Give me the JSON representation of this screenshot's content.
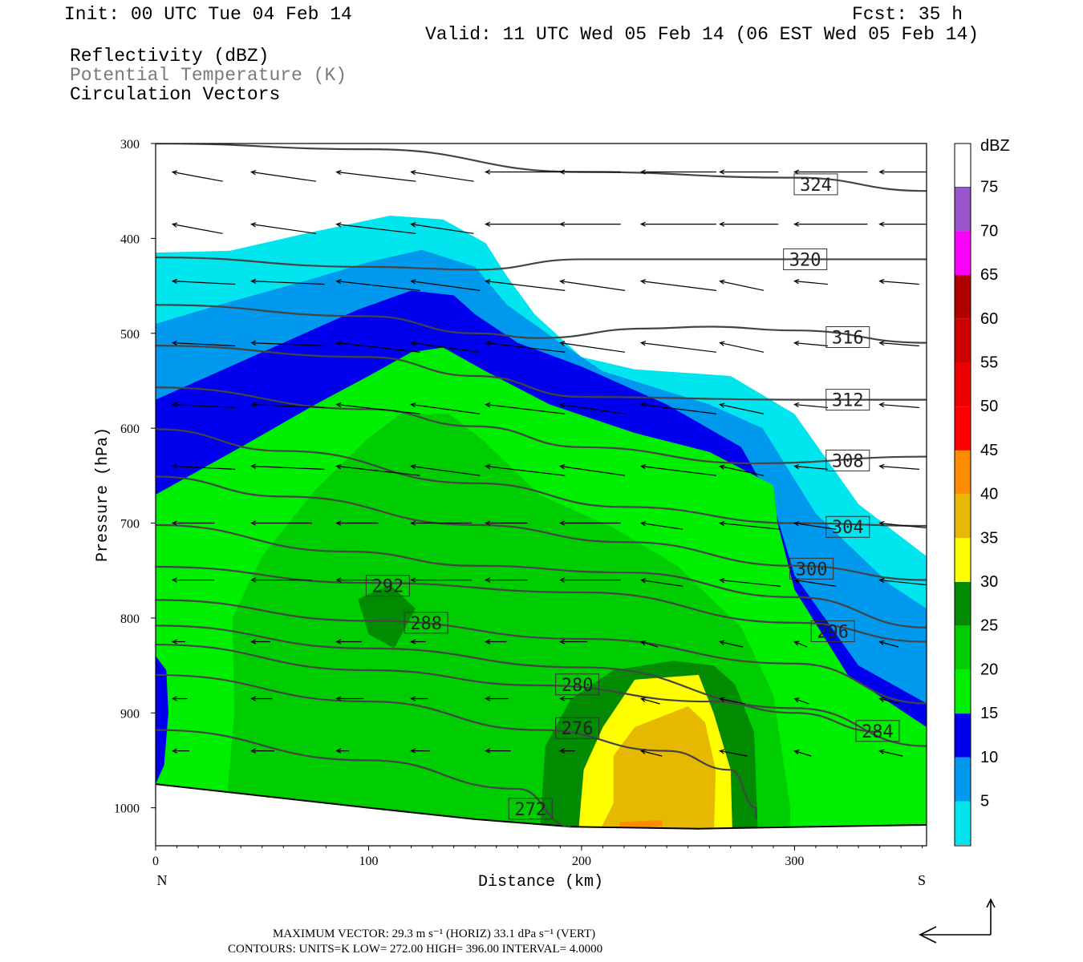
{
  "header": {
    "init": "Init: 00 UTC Tue 04 Feb 14",
    "fcst": "Fcst:   35 h",
    "valid": "Valid: 11 UTC Wed 05 Feb 14 (06 EST Wed 05 Feb 14)",
    "legend1": "Reflectivity (dBZ)",
    "legend2": "Potential Temperature (K)",
    "legend3": "Circulation Vectors"
  },
  "footer": {
    "line1": "MAXIMUM VECTOR:  29.3 m s⁻¹ (HORIZ)        33.1 dPa s⁻¹ (VERT)",
    "line2": "CONTOURS:  UNITS=K  LOW=   272.00        HIGH=   396.00        INTERVAL=    4.0000"
  },
  "colors": {
    "c5": "#00e5ee",
    "c10": "#0099ee",
    "c15": "#0000ee",
    "c20": "#00ee00",
    "c25": "#00cd00",
    "c30": "#008b00",
    "c35": "#ffff00",
    "c40": "#e6b800",
    "c45": "#ff8c00",
    "c50": "#ff0000",
    "c55": "#ee0000",
    "c60": "#cd0000",
    "c65": "#b00000",
    "c70": "#ff00ff",
    "c75": "#9955cc",
    "theta": "#444444"
  },
  "chart_data": {
    "type": "cross-section",
    "xlabel": "Distance (km)",
    "ylabel": "Pressure (hPa)",
    "xlim": [
      0,
      362
    ],
    "ylim": [
      1040,
      300
    ],
    "xticks": [
      0,
      100,
      200,
      300
    ],
    "yticks": [
      300,
      400,
      500,
      600,
      700,
      800,
      900,
      1000
    ],
    "x_end_labels": {
      "left": "N",
      "right": "S"
    },
    "colorbar": {
      "title": "dBZ",
      "levels": [
        5,
        10,
        15,
        20,
        25,
        30,
        35,
        40,
        45,
        50,
        55,
        60,
        65,
        70,
        75
      ]
    },
    "theta_contours": [
      {
        "value": 324,
        "label": "324",
        "points": [
          [
            0,
            300
          ],
          [
            100,
            306
          ],
          [
            200,
            330
          ],
          [
            300,
            336
          ],
          [
            362,
            350
          ]
        ],
        "label_at": [
          310,
          343
        ]
      },
      {
        "value": 320,
        "label": "320",
        "points": [
          [
            0,
            420
          ],
          [
            100,
            430
          ],
          [
            150,
            433
          ],
          [
            200,
            422
          ],
          [
            300,
            422
          ],
          [
            362,
            422
          ]
        ],
        "label_at": [
          305,
          422
        ]
      },
      {
        "value": 316,
        "label": "316",
        "points": [
          [
            0,
            470
          ],
          [
            100,
            482
          ],
          [
            150,
            500
          ],
          [
            180,
            505
          ],
          [
            230,
            495
          ],
          [
            260,
            493
          ],
          [
            300,
            497
          ],
          [
            362,
            510
          ]
        ],
        "label_at": [
          325,
          504
        ]
      },
      {
        "value": 312,
        "label": "312",
        "points": [
          [
            0,
            513
          ],
          [
            100,
            525
          ],
          [
            150,
            545
          ],
          [
            200,
            567
          ],
          [
            300,
            570
          ],
          [
            362,
            570
          ]
        ],
        "label_at": [
          325,
          570
        ]
      },
      {
        "value": 308,
        "label": "308",
        "points": [
          [
            0,
            557
          ],
          [
            100,
            580
          ],
          [
            150,
            598
          ],
          [
            200,
            620
          ],
          [
            280,
            637
          ],
          [
            362,
            630
          ]
        ],
        "label_at": [
          325,
          634
        ]
      },
      {
        "value": 304,
        "label": "304",
        "points": [
          [
            0,
            601
          ],
          [
            60,
            624
          ],
          [
            150,
            658
          ],
          [
            220,
            683
          ],
          [
            300,
            700
          ],
          [
            362,
            703
          ]
        ],
        "label_at": [
          325,
          704
        ]
      },
      {
        "value": 300,
        "label": "300",
        "points": [
          [
            0,
            651
          ],
          [
            60,
            672
          ],
          [
            150,
            702
          ],
          [
            220,
            720
          ],
          [
            300,
            745
          ],
          [
            362,
            760
          ]
        ],
        "label_at": [
          308,
          748
        ]
      },
      {
        "value": 296,
        "label": "296",
        "points": [
          [
            0,
            702
          ],
          [
            90,
            730
          ],
          [
            150,
            745
          ],
          [
            220,
            752
          ],
          [
            300,
            778
          ],
          [
            362,
            810
          ]
        ],
        "label_at": [
          318,
          814
        ]
      },
      {
        "value": 292,
        "label": "292",
        "points": [
          [
            0,
            746
          ],
          [
            100,
            763
          ],
          [
            200,
            773
          ],
          [
            300,
            805
          ],
          [
            362,
            825
          ]
        ],
        "label_at": [
          109,
          766
        ]
      },
      {
        "value": 288,
        "label": "288",
        "points": [
          [
            0,
            781
          ],
          [
            100,
            803
          ],
          [
            200,
            822
          ],
          [
            300,
            848
          ],
          [
            362,
            890
          ]
        ],
        "label_at": [
          127,
          805
        ]
      },
      {
        "value": 284,
        "label": "284",
        "points": [
          [
            0,
            808
          ],
          [
            100,
            832
          ],
          [
            200,
            852
          ],
          [
            300,
            895
          ],
          [
            362,
            935
          ]
        ],
        "label_at": [
          339,
          919
        ]
      },
      {
        "value": 280,
        "label": "280",
        "points": [
          [
            0,
            828
          ],
          [
            100,
            855
          ],
          [
            180,
            871
          ],
          [
            260,
            888
          ],
          [
            300,
            900
          ],
          [
            340,
            920
          ]
        ],
        "label_at": [
          198,
          870
        ]
      },
      {
        "value": 276,
        "label": "276",
        "points": [
          [
            0,
            860
          ],
          [
            100,
            888
          ],
          [
            180,
            918
          ],
          [
            240,
            940
          ],
          [
            270,
            960
          ],
          [
            282,
            1000
          ],
          [
            282,
            1012
          ]
        ],
        "label_at": [
          198,
          916
        ]
      },
      {
        "value": 272,
        "label": "272",
        "points": [
          [
            0,
            918
          ],
          [
            100,
            950
          ],
          [
            170,
            980
          ],
          [
            195,
            1020
          ]
        ],
        "label_at": [
          176,
          1001
        ]
      }
    ],
    "vectors_sample": [
      {
        "x": 10,
        "p": 335,
        "u": -20,
        "w": 2
      },
      {
        "x": 10,
        "p": 380,
        "u": -25,
        "w": 3
      },
      {
        "x": 100,
        "p": 470,
        "u": -22,
        "w": 15
      }
    ]
  }
}
